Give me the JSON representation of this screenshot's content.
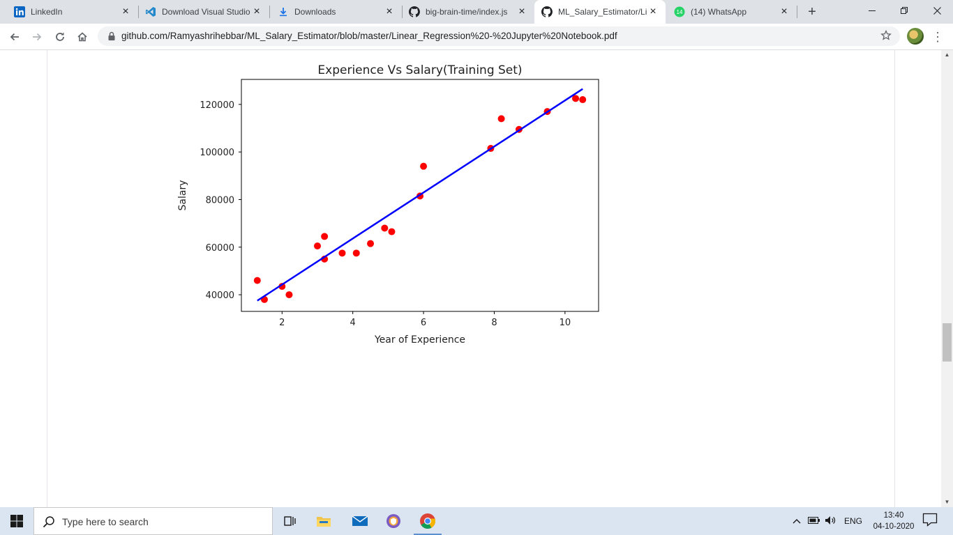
{
  "browser": {
    "tabs": [
      {
        "title": "LinkedIn",
        "icon": "linkedin-icon",
        "active": false
      },
      {
        "title": "Download Visual Studio",
        "icon": "vscode-icon",
        "active": false
      },
      {
        "title": "Downloads",
        "icon": "download-icon",
        "active": false
      },
      {
        "title": "big-brain-time/index.js",
        "icon": "github-icon",
        "active": false
      },
      {
        "title": "ML_Salary_Estimator/Lin",
        "icon": "github-icon",
        "active": true
      },
      {
        "title": "(14) WhatsApp",
        "icon": "whatsapp-icon",
        "active": false,
        "badge": "14"
      }
    ],
    "new_tab": "+",
    "url": "github.com/Ramyashrihebbar/ML_Salary_Estimator/blob/master/Linear_Regression%20-%20Jupyter%20Notebook.pdf"
  },
  "chart_data": {
    "type": "scatter",
    "title": "Experience Vs Salary(Training Set)",
    "xlabel": "Year of Experience",
    "ylabel": "Salary",
    "xlim": [
      0.85,
      10.95
    ],
    "ylim": [
      33000,
      130500
    ],
    "xticks": [
      "2",
      "4",
      "6",
      "8",
      "10"
    ],
    "yticks": [
      "40000",
      "60000",
      "80000",
      "100000",
      "120000"
    ],
    "points_color": "#ff0000",
    "line_color": "#0000ff",
    "points": [
      [
        1.3,
        46000
      ],
      [
        1.5,
        38000
      ],
      [
        2.0,
        43500
      ],
      [
        2.2,
        40000
      ],
      [
        3.0,
        60500
      ],
      [
        3.2,
        64500
      ],
      [
        3.2,
        55000
      ],
      [
        3.7,
        57500
      ],
      [
        4.1,
        57500
      ],
      [
        4.5,
        61500
      ],
      [
        4.9,
        68000
      ],
      [
        5.1,
        66500
      ],
      [
        5.9,
        81500
      ],
      [
        6.0,
        94000
      ],
      [
        7.9,
        101500
      ],
      [
        8.2,
        114000
      ],
      [
        8.7,
        109500
      ],
      [
        9.5,
        117000
      ],
      [
        10.3,
        122500
      ],
      [
        10.5,
        122000
      ]
    ],
    "line": [
      [
        1.3,
        37500
      ],
      [
        10.5,
        126500
      ]
    ]
  },
  "taskbar": {
    "search_placeholder": "Type here to search",
    "language": "ENG",
    "time": "13:40",
    "date": "04-10-2020"
  }
}
